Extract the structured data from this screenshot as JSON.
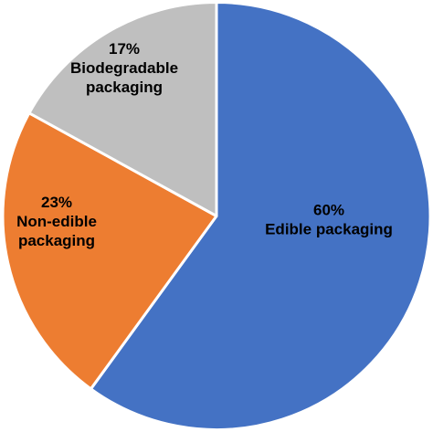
{
  "chart_data": {
    "type": "pie",
    "slices": [
      {
        "label": "Edible packaging",
        "pct_text": "60%",
        "value": 60,
        "color": "#4472C4",
        "label_color": "#000000",
        "label_lines": [
          "60%",
          "Edible packaging"
        ]
      },
      {
        "label": "Non-edible packaging",
        "pct_text": "23%",
        "value": 23,
        "color": "#ED7D31",
        "label_color": "#000000",
        "label_lines": [
          "23%",
          "Non-edible",
          "packaging"
        ]
      },
      {
        "label": "Biodegradable packaging",
        "pct_text": "17%",
        "value": 17,
        "color": "#BFBFBF",
        "label_color": "#000000",
        "label_lines": [
          "17%",
          "Biodegradable",
          "packaging"
        ]
      }
    ],
    "start_angle": "12 o'clock",
    "direction": "clockwise",
    "slice_border_color": "#ffffff"
  }
}
